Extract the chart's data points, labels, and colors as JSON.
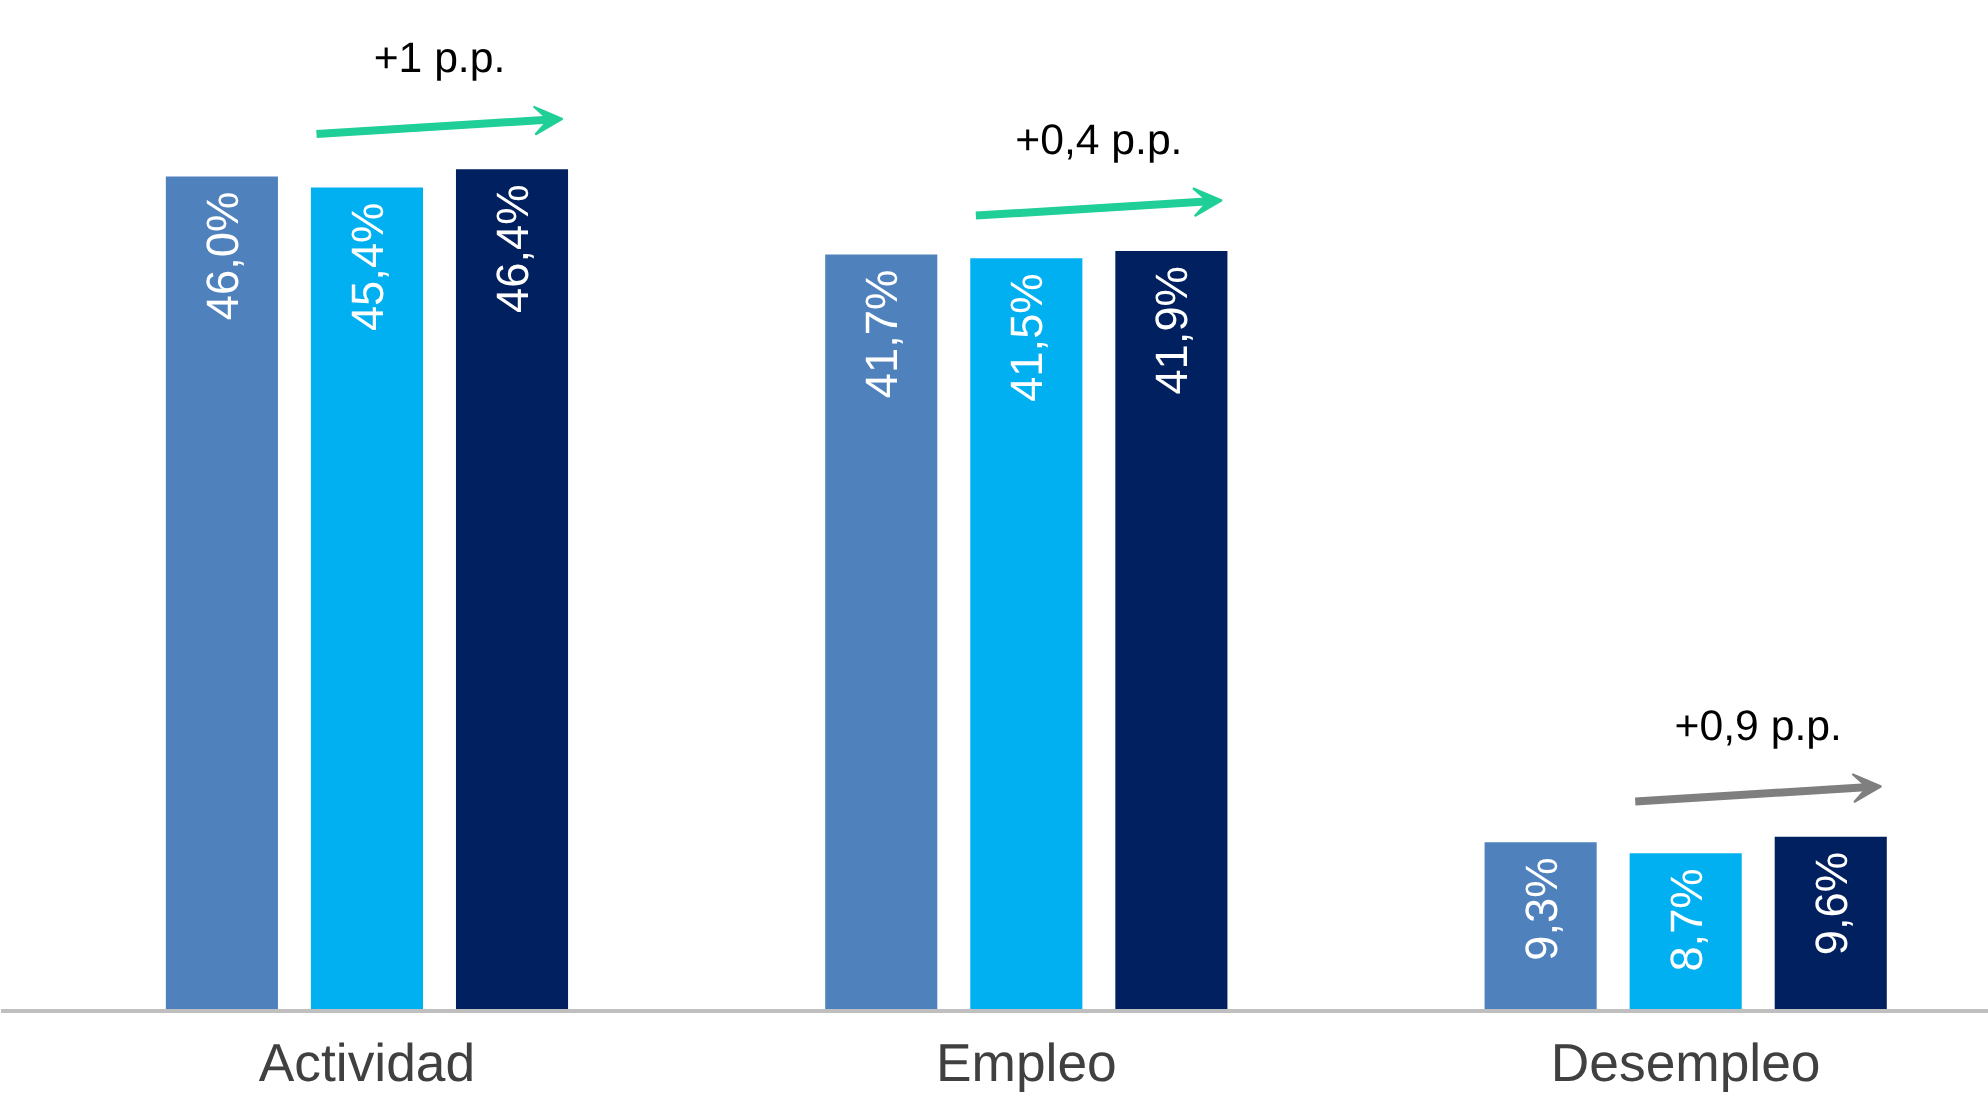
{
  "chart_data": {
    "type": "bar",
    "categories": [
      "Actividad",
      "Empleo",
      "Desempleo"
    ],
    "series": [
      {
        "color": "#4f81bd",
        "values": [
          46.0,
          41.7,
          9.3
        ],
        "value_labels": [
          "46,0%",
          "41,7%",
          "9,3%"
        ]
      },
      {
        "color": "#00b0f0",
        "values": [
          45.4,
          41.5,
          8.7
        ],
        "value_labels": [
          "45,4%",
          "41,5%",
          "8,7%"
        ]
      },
      {
        "color": "#002060",
        "values": [
          46.4,
          41.9,
          9.6
        ],
        "value_labels": [
          "46,4%",
          "41,9%",
          "9,6%"
        ]
      }
    ],
    "annotations": [
      "+1 p.p.",
      "+0,4 p.p.",
      "+0,9 p.p."
    ],
    "grid": false
  }
}
